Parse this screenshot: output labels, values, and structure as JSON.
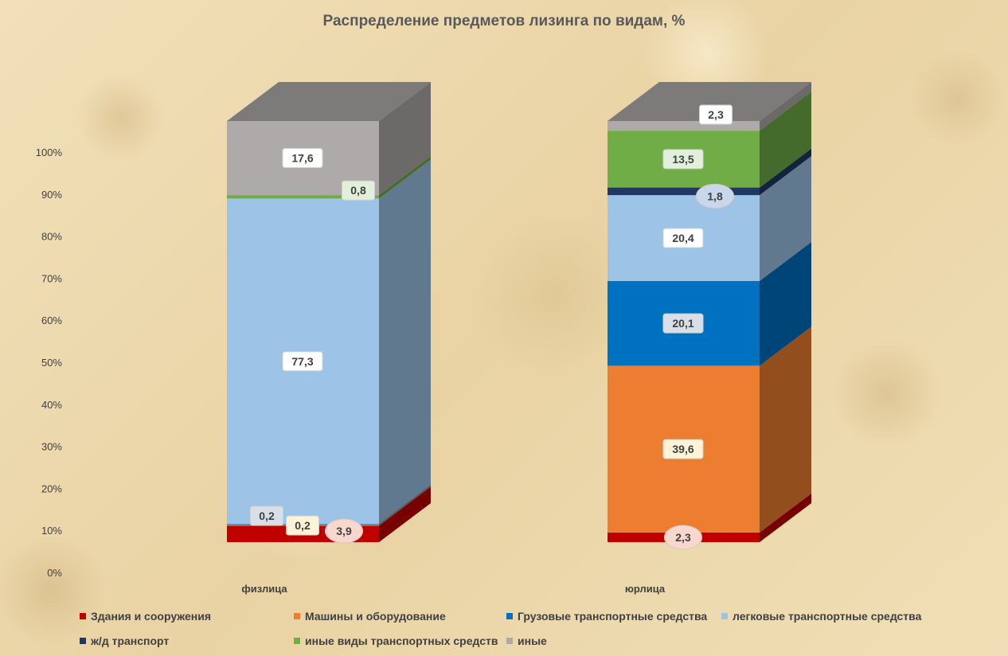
{
  "chart_data": {
    "type": "bar",
    "stacked": true,
    "title": "Распределение предметов лизинга по видам, %",
    "categories": [
      "физлица",
      "юрлица"
    ],
    "y_ticks": [
      "0%",
      "10%",
      "20%",
      "30%",
      "40%",
      "50%",
      "60%",
      "70%",
      "80%",
      "90%",
      "100%"
    ],
    "ylim": [
      0,
      100
    ],
    "legend_position": "bottom",
    "series": [
      {
        "name": "Здания и сооружения",
        "color": "#c00000",
        "label_bg": "#f8d7cf",
        "label_shape": "ellipse",
        "values": [
          3.9,
          2.3
        ],
        "labels": [
          "3,9",
          "2,3"
        ]
      },
      {
        "name": "Машины и оборудование",
        "color": "#ed7d31",
        "label_bg": "#fdf3d6",
        "label_shape": "rect",
        "values": [
          0.2,
          39.6
        ],
        "labels": [
          "0,2",
          "39,6"
        ]
      },
      {
        "name": "Грузовые транспортные средства",
        "color": "#0070c0",
        "label_bg": "#d9dfe8",
        "label_shape": "rect",
        "values": [
          0.2,
          20.1
        ],
        "labels": [
          "0,2",
          "20,1"
        ]
      },
      {
        "name": "легковые транспортные средства",
        "color": "#9dc3e6",
        "label_bg": "#ffffff",
        "label_shape": "rect",
        "values": [
          77.3,
          20.4
        ],
        "labels": [
          "77,3",
          "20,4"
        ]
      },
      {
        "name": "ж/д транспорт",
        "color": "#1f3864",
        "label_bg": "#c9d7ea",
        "label_shape": "ellipse",
        "values": [
          0,
          1.8
        ],
        "labels": [
          "",
          "1,8"
        ]
      },
      {
        "name": "иные виды транспортных средств",
        "color": "#70ad47",
        "label_bg": "#e2efda",
        "label_shape": "rect",
        "values": [
          0.8,
          13.5
        ],
        "labels": [
          "0,8",
          "13,5"
        ]
      },
      {
        "name": "иные",
        "color": "#aeaaaa",
        "label_bg": "#ffffff",
        "label_shape": "rect",
        "values": [
          17.6,
          2.3
        ],
        "labels": [
          "17,6",
          "2,3"
        ]
      }
    ]
  }
}
